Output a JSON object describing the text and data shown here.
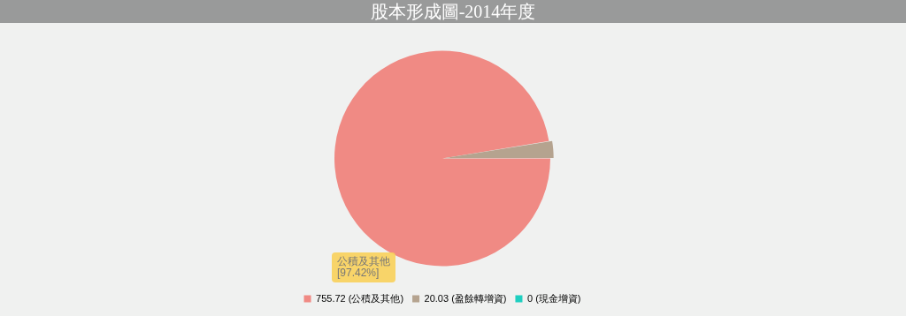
{
  "chart_data": {
    "type": "pie",
    "title": "股本形成圖-2014年度",
    "categories": [
      "755.72 (公積及其他)",
      "20.03 (盈餘轉增資)",
      "0 (現金增資)"
    ],
    "values": [
      755.72,
      20.03,
      0
    ],
    "colors": [
      "#f08a84",
      "#b5a38f",
      "#1ecfc0"
    ],
    "legend": "bottom",
    "annotations": [
      "公積及其他\n[97.42%]"
    ]
  }
}
